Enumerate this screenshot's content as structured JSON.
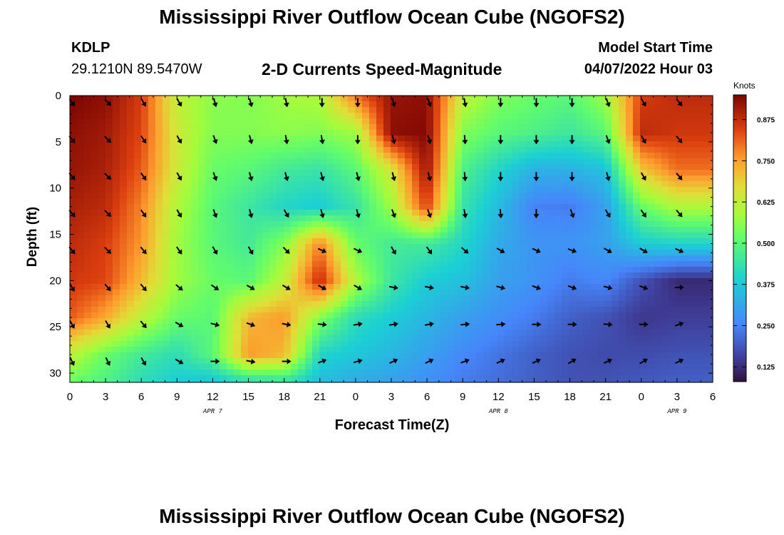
{
  "titles": {
    "main": "Mississippi River Outflow Ocean Cube (NGOFS2)",
    "repeat": "Mississippi River Outflow Ocean Cube (NGOFS2)"
  },
  "station": {
    "id": "KDLP",
    "coords": "29.1210N  89.5470W"
  },
  "subtitle": "2-D Currents Speed-Magnitude",
  "model": {
    "label": "Model Start Time",
    "value": "04/07/2022 Hour 03"
  },
  "chart_data": {
    "type": "heatmap",
    "title": "2-D Currents Speed-Magnitude",
    "xlabel": "Forecast Time(Z)",
    "ylabel": "Depth (ft)",
    "x": [
      0,
      3,
      6,
      9,
      12,
      15,
      18,
      21,
      24,
      27,
      30,
      33,
      36,
      39,
      42,
      45,
      48,
      51
    ],
    "y": [
      0,
      5,
      10,
      15,
      20,
      25,
      30
    ],
    "xlim": [
      0,
      54
    ],
    "ylim": [
      31,
      0
    ],
    "xtick_labels": [
      "0",
      "3",
      "6",
      "9",
      "12",
      "15",
      "18",
      "21",
      "0",
      "3",
      "6",
      "9",
      "12",
      "15",
      "18",
      "21",
      "0",
      "3",
      "6"
    ],
    "ytick_labels": [
      "0",
      "5",
      "10",
      "15",
      "20",
      "25",
      "30"
    ],
    "date_labels": [
      {
        "label": "APR 7",
        "hour": 12
      },
      {
        "label": "APR 8",
        "hour": 36
      },
      {
        "label": "APR 9",
        "hour": 51
      }
    ],
    "colorbar": {
      "title": "Knots",
      "range": [
        0.08,
        0.95
      ],
      "ticks": [
        "0.125",
        "0.250",
        "0.375",
        "0.500",
        "0.625",
        "0.750",
        "0.875"
      ]
    },
    "speed_knots": [
      [
        0.95,
        0.93,
        0.85,
        0.62,
        0.56,
        0.55,
        0.58,
        0.6,
        0.8,
        0.92,
        0.93,
        0.62,
        0.55,
        0.52,
        0.5,
        0.58,
        0.85,
        0.88
      ],
      [
        0.93,
        0.91,
        0.84,
        0.64,
        0.55,
        0.55,
        0.56,
        0.55,
        0.58,
        0.93,
        0.94,
        0.55,
        0.5,
        0.48,
        0.45,
        0.5,
        0.88,
        0.86
      ],
      [
        0.92,
        0.9,
        0.82,
        0.64,
        0.52,
        0.5,
        0.46,
        0.44,
        0.5,
        0.65,
        0.92,
        0.48,
        0.4,
        0.33,
        0.33,
        0.36,
        0.7,
        0.8
      ],
      [
        0.9,
        0.88,
        0.78,
        0.6,
        0.5,
        0.45,
        0.4,
        0.38,
        0.44,
        0.58,
        0.85,
        0.44,
        0.35,
        0.25,
        0.24,
        0.3,
        0.52,
        0.6
      ],
      [
        0.88,
        0.85,
        0.76,
        0.58,
        0.5,
        0.46,
        0.55,
        0.78,
        0.52,
        0.46,
        0.46,
        0.4,
        0.32,
        0.28,
        0.28,
        0.3,
        0.38,
        0.4
      ],
      [
        0.86,
        0.84,
        0.72,
        0.58,
        0.52,
        0.5,
        0.62,
        0.88,
        0.6,
        0.45,
        0.38,
        0.36,
        0.3,
        0.28,
        0.24,
        0.26,
        0.18,
        0.12
      ],
      [
        0.82,
        0.74,
        0.62,
        0.52,
        0.5,
        0.72,
        0.76,
        0.55,
        0.42,
        0.38,
        0.34,
        0.3,
        0.27,
        0.24,
        0.2,
        0.18,
        0.14,
        0.15
      ],
      [
        0.62,
        0.52,
        0.46,
        0.42,
        0.5,
        0.76,
        0.72,
        0.4,
        0.37,
        0.34,
        0.3,
        0.26,
        0.23,
        0.2,
        0.18,
        0.17,
        0.17,
        0.18
      ],
      [
        0.52,
        0.48,
        0.42,
        0.38,
        0.36,
        0.4,
        0.42,
        0.35,
        0.32,
        0.3,
        0.27,
        0.24,
        0.22,
        0.2,
        0.18,
        0.18,
        0.19,
        0.2
      ]
    ],
    "speed_depths": [
      0,
      4,
      8,
      12,
      16,
      20,
      24,
      28,
      31
    ],
    "arrow_depths": [
      0.5,
      4.5,
      8.5,
      12.5,
      16.5,
      20.5,
      24.5,
      28.5
    ],
    "arrow_direction_deg": [
      [
        145,
        135,
        150,
        150,
        165,
        165,
        170,
        180,
        180,
        165,
        160,
        170,
        180,
        180,
        180,
        160,
        150,
        140
      ],
      [
        140,
        135,
        145,
        150,
        160,
        165,
        170,
        170,
        180,
        165,
        165,
        175,
        180,
        180,
        180,
        160,
        150,
        140
      ],
      [
        140,
        135,
        145,
        150,
        160,
        165,
        165,
        165,
        165,
        165,
        165,
        175,
        180,
        180,
        180,
        165,
        150,
        140
      ],
      [
        140,
        135,
        145,
        150,
        160,
        165,
        150,
        165,
        165,
        160,
        160,
        170,
        175,
        180,
        160,
        150,
        145,
        140
      ],
      [
        140,
        135,
        140,
        145,
        150,
        150,
        135,
        115,
        115,
        150,
        145,
        130,
        120,
        115,
        110,
        120,
        120,
        115
      ],
      [
        150,
        140,
        140,
        130,
        125,
        120,
        120,
        120,
        120,
        100,
        100,
        100,
        105,
        110,
        110,
        105,
        110,
        90
      ],
      [
        150,
        150,
        140,
        120,
        105,
        110,
        100,
        95,
        80,
        80,
        80,
        85,
        85,
        90,
        90,
        95,
        90,
        70
      ],
      [
        155,
        155,
        150,
        120,
        90,
        100,
        90,
        70,
        75,
        65,
        65,
        70,
        65,
        65,
        60,
        65,
        60,
        65
      ]
    ]
  }
}
